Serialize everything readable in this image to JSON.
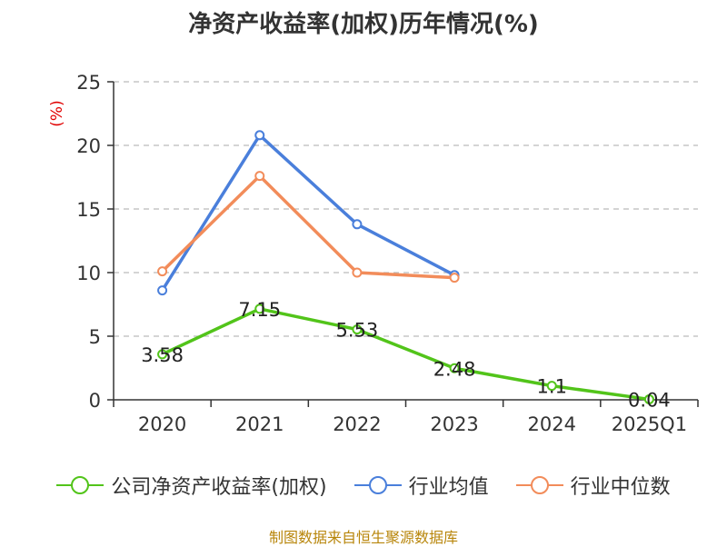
{
  "footer": "制图数据来自恒生聚源数据库",
  "legend": [
    {
      "label": "公司净资产收益率(加权)",
      "color": "#52c41a"
    },
    {
      "label": "行业均值",
      "color": "#4a7fdb"
    },
    {
      "label": "行业中位数",
      "color": "#f28c5a"
    }
  ],
  "chart_data": {
    "type": "line",
    "title": "净资产收益率(加权)历年情况(%)",
    "ylabel": "(%)",
    "ylabel_color": "#e00000",
    "xlabel": "",
    "ylim": [
      0,
      25
    ],
    "yticks": [
      0,
      5,
      10,
      15,
      20,
      25
    ],
    "grid": true,
    "categories": [
      "2020",
      "2021",
      "2022",
      "2023",
      "2024",
      "2025Q1"
    ],
    "series": [
      {
        "name": "公司净资产收益率(加权)",
        "color": "#52c41a",
        "values": [
          3.58,
          7.15,
          5.53,
          2.48,
          1.1,
          0.04
        ],
        "labels": [
          "3.58",
          "7.15",
          "5.53",
          "2.48",
          "1.1",
          "0.04"
        ]
      },
      {
        "name": "行业均值",
        "color": "#4a7fdb",
        "values": [
          8.6,
          20.8,
          13.8,
          9.8,
          null,
          null
        ]
      },
      {
        "name": "行业中位数",
        "color": "#f28c5a",
        "values": [
          10.1,
          17.6,
          10.0,
          9.6,
          null,
          null
        ]
      }
    ]
  }
}
